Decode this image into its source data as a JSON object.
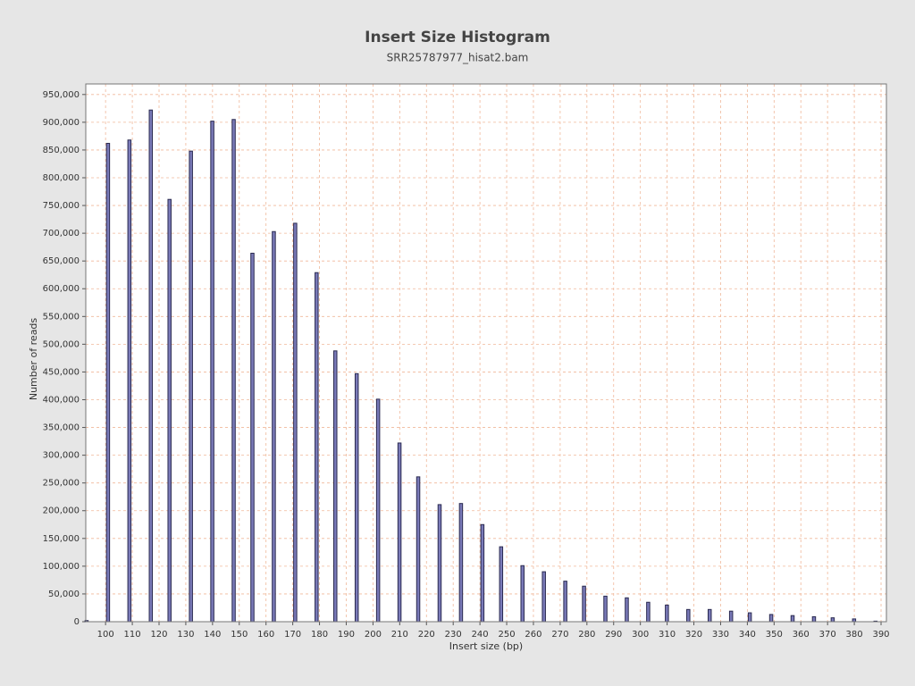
{
  "chart_data": {
    "type": "bar",
    "title": "Insert Size Histogram",
    "subtitle": "SRR25787977_hisat2.bam",
    "x_label": "Insert size (bp)",
    "y_label": "Number of reads",
    "x": [
      93,
      101,
      109,
      117,
      124,
      132,
      140,
      148,
      155,
      163,
      171,
      179,
      186,
      194,
      202,
      210,
      217,
      225,
      233,
      241,
      248,
      256,
      264,
      272,
      279,
      287,
      295,
      303,
      310,
      318,
      326,
      334,
      341,
      349,
      357,
      365,
      372,
      380,
      388
    ],
    "values": [
      2000,
      862000,
      868000,
      922000,
      761000,
      848000,
      902000,
      905000,
      664000,
      703000,
      718000,
      629000,
      488000,
      447000,
      401000,
      322000,
      261000,
      211000,
      213000,
      175000,
      135000,
      101000,
      90000,
      73000,
      64000,
      46000,
      43000,
      35000,
      30000,
      22000,
      22000,
      19000,
      16000,
      13000,
      11000,
      9000,
      7000,
      5000,
      1000
    ],
    "color": "#7a7ab8",
    "xlim": [
      92.6,
      392.0
    ],
    "ylim": [
      0,
      969000
    ],
    "xticks": [
      100,
      110,
      120,
      130,
      140,
      150,
      160,
      170,
      180,
      190,
      200,
      210,
      220,
      230,
      240,
      250,
      260,
      270,
      280,
      290,
      300,
      310,
      320,
      330,
      340,
      350,
      360,
      370,
      380,
      390
    ],
    "yticks": [
      0,
      {
        "value": 50000,
        "label": "50,000"
      },
      {
        "value": 100000,
        "label": "100,000"
      },
      {
        "value": 150000,
        "label": "150,000"
      },
      {
        "value": 200000,
        "label": "200,000"
      },
      {
        "value": 250000,
        "label": "250,000"
      },
      {
        "value": 300000,
        "label": "300,000"
      },
      {
        "value": 350000,
        "label": "350,000"
      },
      {
        "value": 400000,
        "label": "400,000"
      },
      {
        "value": 450000,
        "label": "450,000"
      },
      {
        "value": 500000,
        "label": "500,000"
      },
      {
        "value": 550000,
        "label": "550,000"
      },
      {
        "value": 600000,
        "label": "600,000"
      },
      {
        "value": 650000,
        "label": "650,000"
      },
      {
        "value": 700000,
        "label": "700,000"
      },
      {
        "value": 750000,
        "label": "750,000"
      },
      {
        "value": 800000,
        "label": "800,000"
      },
      {
        "value": 850000,
        "label": "850,000"
      },
      {
        "value": 900000,
        "label": "900,000"
      },
      {
        "value": 950000,
        "label": "950,000"
      }
    ],
    "grid": true
  }
}
